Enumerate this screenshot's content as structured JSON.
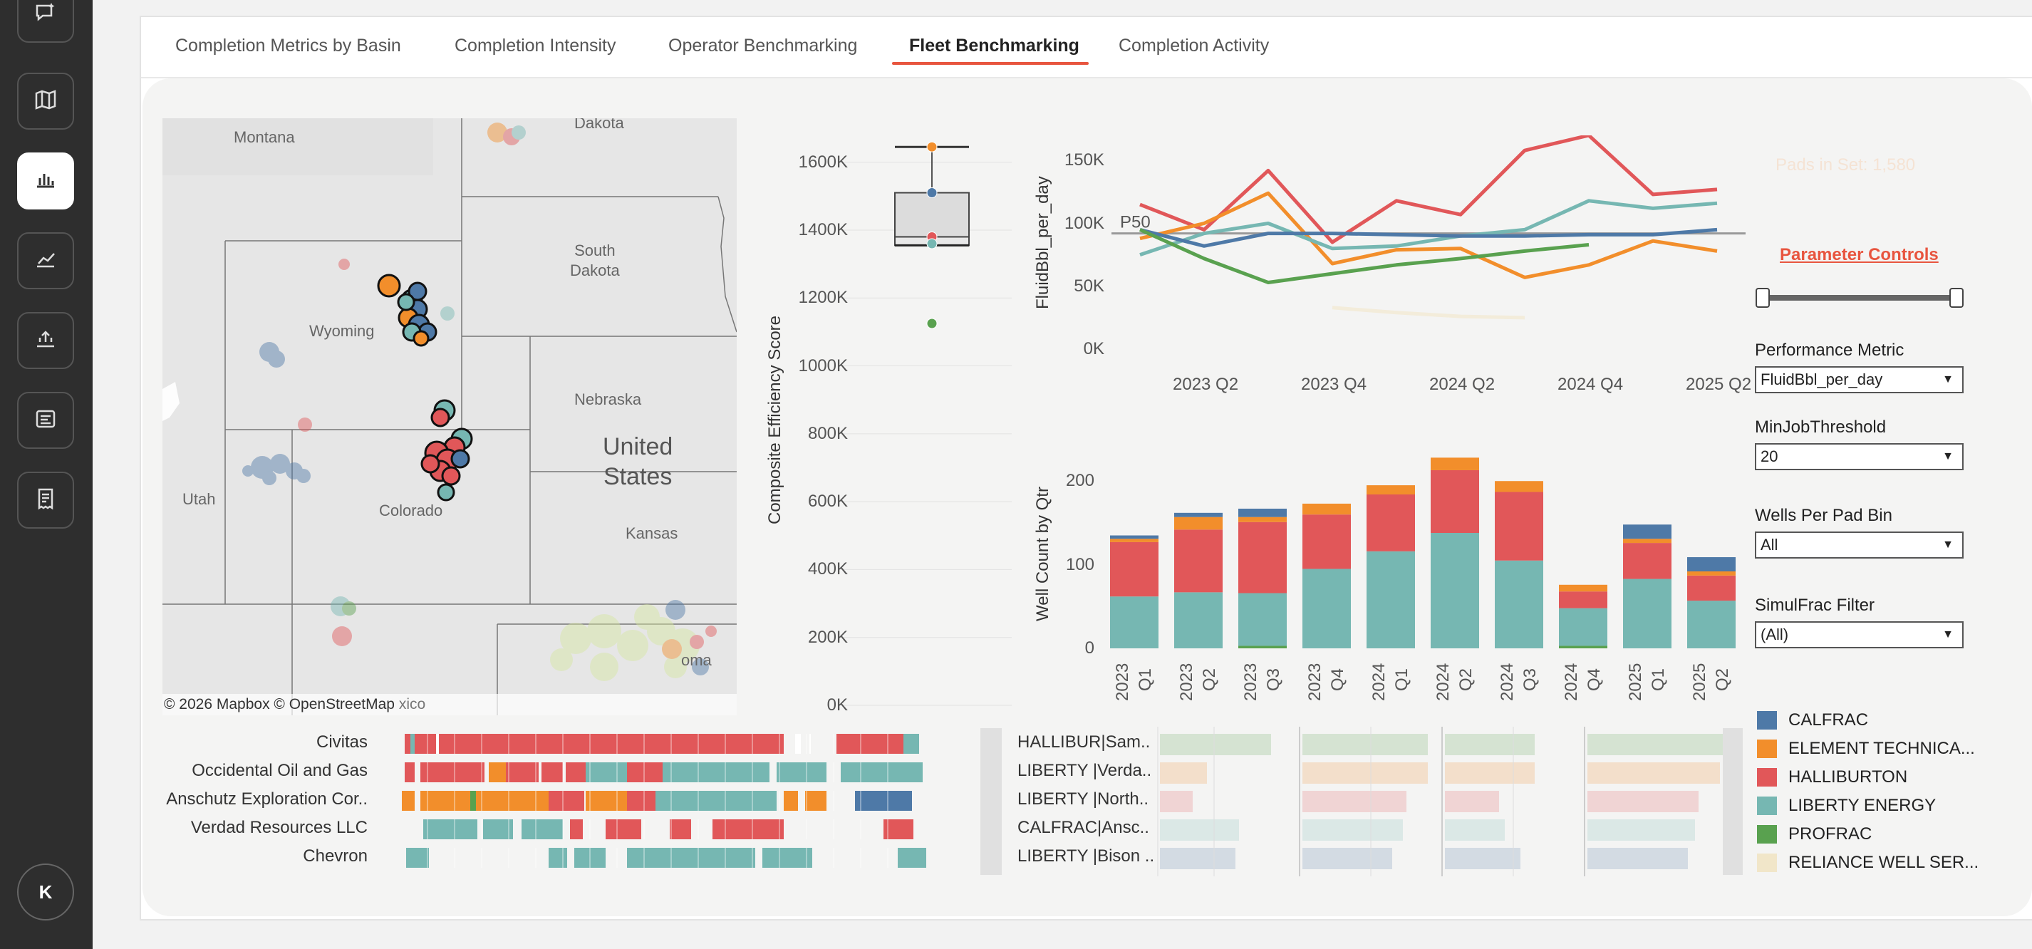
{
  "rail": {
    "items": [
      {
        "icon": "chat-sparkle-icon"
      },
      {
        "icon": "map-icon"
      },
      {
        "icon": "bar-chart-icon",
        "active": true
      },
      {
        "icon": "line-chart-icon"
      },
      {
        "icon": "upload-chart-icon"
      },
      {
        "icon": "report-icon"
      },
      {
        "icon": "receipt-icon"
      }
    ],
    "avatar_initial": "K"
  },
  "tabs": [
    {
      "label": "Completion Metrics by Basin"
    },
    {
      "label": "Completion Intensity"
    },
    {
      "label": "Operator Benchmarking"
    },
    {
      "label": "Fleet Benchmarking",
      "active": true
    },
    {
      "label": "Completion Activity"
    }
  ],
  "map": {
    "labels": {
      "montana": "Montana",
      "dakota": "Dakota",
      "south_dakota": "South\nDakota",
      "wyoming": "Wyoming",
      "nebraska": "Nebraska",
      "united_states": "United\nStates",
      "utah": "Utah",
      "colorado": "Colorado",
      "kansas": "Kansas",
      "oma": "oma",
      "xico": "xico"
    },
    "attribution": "© 2026 Mapbox  © OpenStreetMap"
  },
  "boxplot": {
    "ylabel": "Composite Efficiency Score",
    "ticks": [
      "1600K",
      "1400K",
      "1200K",
      "1000K",
      "800K",
      "600K",
      "400K",
      "200K",
      "0K"
    ]
  },
  "controls": {
    "pads_in_set": "Pads in Set: 1,580",
    "parameter_controls": "Parameter Controls",
    "performance_metric_label": "Performance Metric",
    "performance_metric_value": "FluidBbl_per_day",
    "min_job_threshold_label": "MinJobThreshold",
    "min_job_threshold_value": "20",
    "wells_per_pad_label": "Wells Per Pad Bin",
    "wells_per_pad_value": "All",
    "simulfrac_label": "SimulFrac Filter",
    "simulfrac_value": "(All)"
  },
  "colors": {
    "CALFRAC": "#4e79a7",
    "ELEMENT TECHNICAL": "#f28e2b",
    "HALLIBURTON": "#e15759",
    "LIBERTY ENERGY": "#76b7b2",
    "PROFRAC": "#59a14f",
    "RELIANCE WELL SERVICES": "#f1e6c9",
    "accent": "#e8553f"
  },
  "legend": [
    {
      "label": "CALFRAC",
      "color": "#4e79a7"
    },
    {
      "label": "ELEMENT TECHNICA...",
      "color": "#f28e2b"
    },
    {
      "label": "HALLIBURTON",
      "color": "#e15759"
    },
    {
      "label": "LIBERTY ENERGY",
      "color": "#76b7b2"
    },
    {
      "label": "PROFRAC",
      "color": "#59a14f"
    },
    {
      "label": "RELIANCE WELL SER...",
      "color": "#f1e6c9"
    }
  ],
  "gantt": {
    "operators": [
      "Civitas",
      "Occidental Oil and Gas",
      "Anschutz Exploration Cor..",
      "Verdad Resources LLC",
      "Chevron"
    ]
  },
  "fleets": {
    "labels": [
      "HALLIBUR|Sam..",
      "LIBERTY |Verda..",
      "LIBERTY |North..",
      "CALFRAC|Ansc..",
      "LIBERTY |Bison .."
    ]
  },
  "chart_data": [
    {
      "type": "line",
      "ylabel": "FluidBbl_per_day",
      "yticks": [
        "150K",
        "100K",
        "50K",
        "0K"
      ],
      "xticks": [
        "2023 Q2",
        "2023 Q4",
        "2024 Q2",
        "2024 Q4",
        "2025 Q2"
      ],
      "ylim": [
        0,
        170000
      ],
      "reference_line": {
        "label": "P50",
        "value": 92000
      },
      "x": [
        "2023 Q1",
        "2023 Q2",
        "2023 Q3",
        "2023 Q4",
        "2024 Q1",
        "2024 Q2",
        "2024 Q3",
        "2024 Q4",
        "2025 Q1",
        "2025 Q2"
      ],
      "series": [
        {
          "name": "HALLIBURTON",
          "values": [
            115000,
            95000,
            142000,
            85000,
            118000,
            107000,
            158000,
            170000,
            123000,
            127000
          ]
        },
        {
          "name": "ELEMENT TECHNICA...",
          "values": [
            88000,
            100000,
            124000,
            68000,
            79000,
            80000,
            57000,
            67000,
            86000,
            78000
          ]
        },
        {
          "name": "LIBERTY ENERGY",
          "values": [
            75000,
            92000,
            100000,
            80000,
            82000,
            90000,
            95000,
            118000,
            112000,
            116000
          ]
        },
        {
          "name": "CALFRAC",
          "values": [
            95000,
            82000,
            92000,
            92000,
            91000,
            90000,
            90000,
            91000,
            91000,
            95000
          ]
        },
        {
          "name": "PROFRAC",
          "values": [
            95000,
            72000,
            53000,
            60000,
            67000,
            72000,
            78000,
            83000,
            null,
            null
          ]
        },
        {
          "name": "RELIANCE WELL SER...",
          "values": [
            null,
            null,
            null,
            33000,
            29000,
            26000,
            25000,
            null,
            null,
            null
          ]
        }
      ]
    },
    {
      "type": "bar",
      "stacked": true,
      "ylabel": "Well Count by Qtr",
      "yticks": [
        "200",
        "100",
        "0"
      ],
      "ylim": [
        0,
        230
      ],
      "categories": [
        "2023 Q1",
        "2023 Q2",
        "2023 Q3",
        "2023 Q4",
        "2024 Q1",
        "2024 Q2",
        "2024 Q3",
        "2024 Q4",
        "2025 Q1",
        "2025 Q2"
      ],
      "category_labels": [
        [
          "2023",
          "Q1"
        ],
        [
          "2023",
          "Q2"
        ],
        [
          "2023",
          "Q3"
        ],
        [
          "2023",
          "Q4"
        ],
        [
          "2024",
          "Q1"
        ],
        [
          "2024",
          "Q2"
        ],
        [
          "2024",
          "Q3"
        ],
        [
          "2024",
          "Q4"
        ],
        [
          "2025",
          "Q1"
        ],
        [
          "2025",
          "Q2"
        ]
      ],
      "series": [
        {
          "name": "PROFRAC",
          "values": [
            0,
            0,
            3,
            0,
            0,
            0,
            0,
            3,
            0,
            0
          ]
        },
        {
          "name": "LIBERTY ENERGY",
          "values": [
            62,
            67,
            63,
            95,
            116,
            138,
            105,
            45,
            83,
            57
          ]
        },
        {
          "name": "HALLIBURTON",
          "values": [
            65,
            75,
            85,
            65,
            68,
            75,
            82,
            20,
            43,
            30
          ]
        },
        {
          "name": "ELEMENT TECHNICA...",
          "values": [
            4,
            15,
            6,
            13,
            11,
            15,
            13,
            8,
            5,
            5
          ]
        },
        {
          "name": "CALFRAC",
          "values": [
            4,
            5,
            10,
            0,
            0,
            0,
            0,
            0,
            17,
            17
          ]
        },
        {
          "name": "RELIANCE WELL SER...",
          "values": [
            0,
            0,
            0,
            0,
            0,
            0,
            0,
            0,
            0,
            0
          ]
        }
      ]
    },
    {
      "type": "scatter",
      "title": "",
      "ylabel": "Composite Efficiency Score",
      "ylim": [
        0,
        1700000
      ],
      "box": {
        "q1": 1355000,
        "median": 1380000,
        "q3": 1510000,
        "whisker_high": 1645000,
        "whisker_low": 1355000
      },
      "points": [
        {
          "series": "ELEMENT TECHNICA...",
          "value": 1645000
        },
        {
          "series": "CALFRAC",
          "value": 1510000
        },
        {
          "series": "HALLIBURTON",
          "value": 1380000
        },
        {
          "series": "LIBERTY ENERGY",
          "value": 1360000
        },
        {
          "series": "PROFRAC",
          "value": 1125000
        }
      ]
    }
  ]
}
